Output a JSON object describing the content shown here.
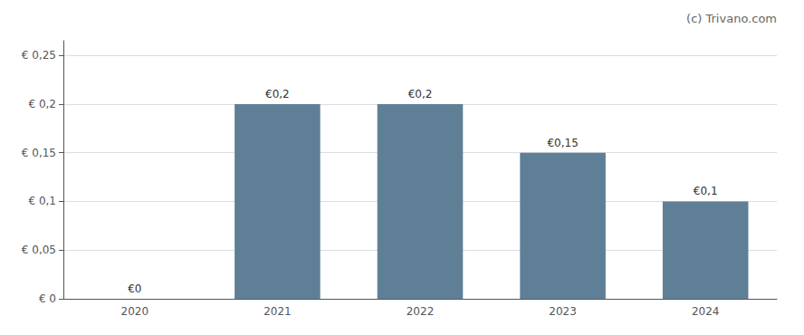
{
  "chart_data": {
    "type": "bar",
    "annotation": "(c) Trivano.com",
    "categories": [
      "2020",
      "2021",
      "2022",
      "2023",
      "2024"
    ],
    "values": [
      0.0,
      0.2,
      0.2,
      0.15,
      0.1
    ],
    "value_labels": [
      "€0",
      "€0,2",
      "€0,2",
      "€0,15",
      "€0,1"
    ],
    "data_labels": true,
    "color": "#5f7f96",
    "ylim": [
      0,
      0.265
    ],
    "yticks": [
      {
        "value": 0,
        "label": "€ 0"
      },
      {
        "value": 0.05,
        "label": "€ 0,05"
      },
      {
        "value": 0.1,
        "label": "€ 0,1"
      },
      {
        "value": 0.15,
        "label": "€ 0,15"
      },
      {
        "value": 0.2,
        "label": "€ 0,2"
      },
      {
        "value": 0.25,
        "label": "€ 0,25"
      }
    ],
    "grid": true
  }
}
